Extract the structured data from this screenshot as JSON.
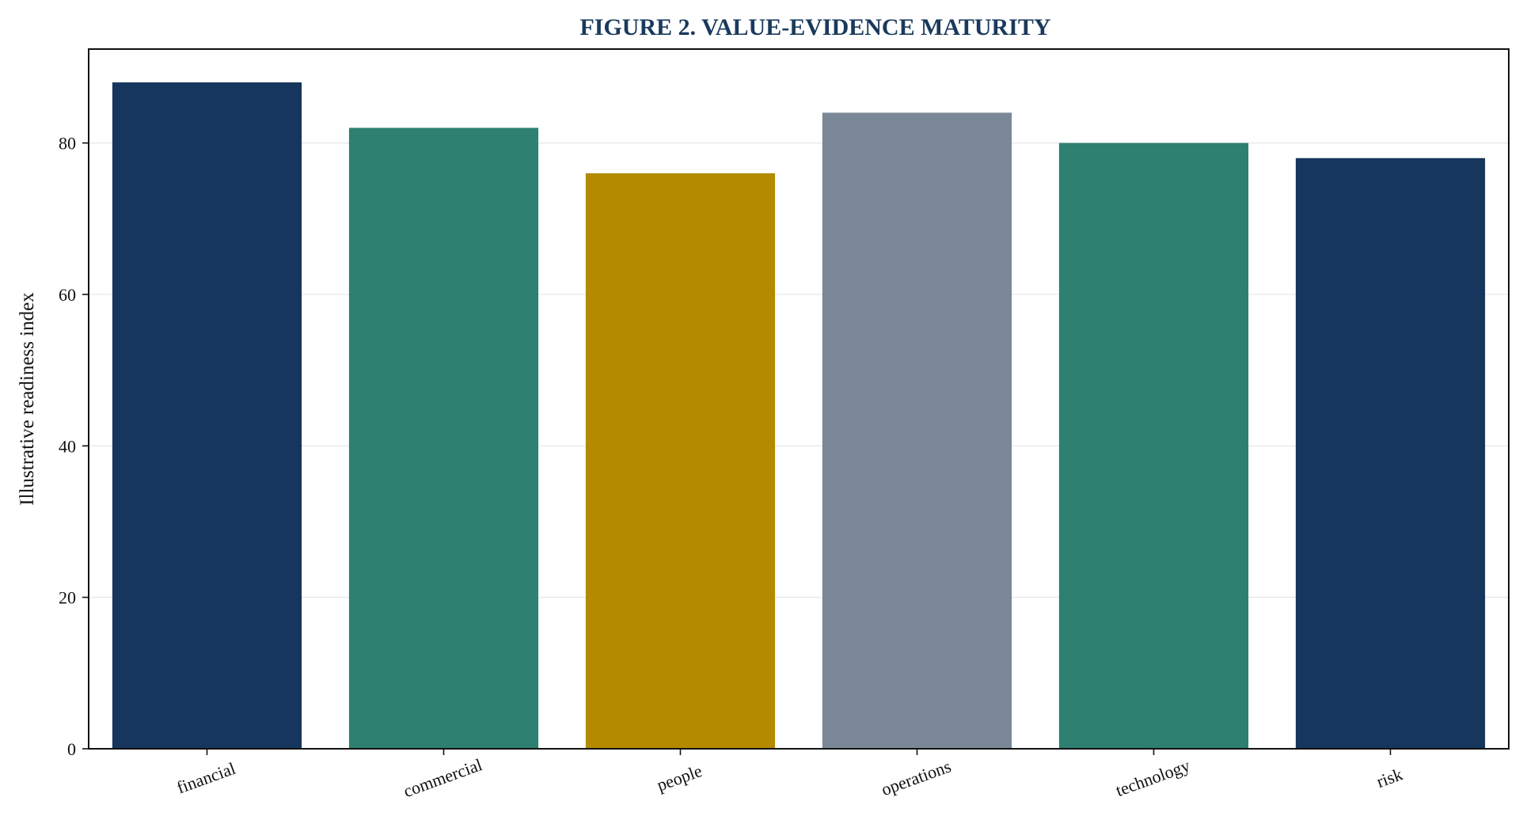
{
  "chart_data": {
    "type": "bar",
    "title": "FIGURE 2. VALUE-EVIDENCE MATURITY",
    "xlabel": "",
    "ylabel": "Illustrative readiness index",
    "categories": [
      "financial",
      "commercial",
      "people",
      "operations",
      "technology",
      "risk"
    ],
    "values": [
      88,
      82,
      76,
      84,
      80,
      78
    ],
    "colors": [
      "#17365d",
      "#2e8070",
      "#b38a00",
      "#7a8796",
      "#2e8070",
      "#17365d"
    ],
    "ylim": [
      0,
      92.4
    ],
    "yticks": [
      0,
      20,
      40,
      60,
      80
    ],
    "ytick_labels": [
      "0",
      "20",
      "40",
      "60",
      "80"
    ],
    "grid": "horizontal",
    "legend": "none"
  }
}
